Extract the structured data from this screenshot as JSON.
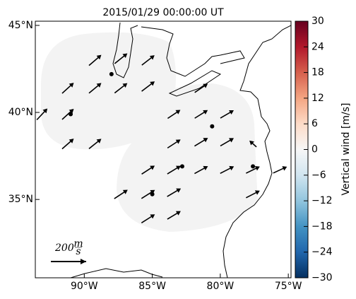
{
  "chart_data": {
    "type": "quiver",
    "title": "2015/01/29 00:00:00 UT",
    "xlim": [
      -93.6,
      -74.8
    ],
    "ylim": [
      30.5,
      45.24
    ],
    "xticks": [
      {
        "value": -90,
        "label": "90°W"
      },
      {
        "value": -85,
        "label": "85°W"
      },
      {
        "value": -80,
        "label": "80°W"
      },
      {
        "value": -75,
        "label": "75°W"
      }
    ],
    "yticks": [
      {
        "value": 35,
        "label": "35°N"
      },
      {
        "value": 40,
        "label": "40°N"
      },
      {
        "value": 45,
        "label": "45°N"
      }
    ],
    "vectors": [
      {
        "lon": -89.2,
        "lat": 43.0,
        "u": 70,
        "v": 60
      },
      {
        "lon": -87.3,
        "lat": 43.1,
        "u": 72,
        "v": 58
      },
      {
        "lon": -85.3,
        "lat": 43.0,
        "u": 72,
        "v": 56
      },
      {
        "lon": -91.2,
        "lat": 41.4,
        "u": 66,
        "v": 60
      },
      {
        "lon": -89.2,
        "lat": 41.4,
        "u": 70,
        "v": 58
      },
      {
        "lon": -87.3,
        "lat": 41.4,
        "u": 72,
        "v": 56
      },
      {
        "lon": -85.3,
        "lat": 41.5,
        "u": 74,
        "v": 56
      },
      {
        "lon": -81.4,
        "lat": 41.4,
        "u": 74,
        "v": 50
      },
      {
        "lon": -93.1,
        "lat": 39.9,
        "u": 60,
        "v": 64
      },
      {
        "lon": -91.2,
        "lat": 39.9,
        "u": 66,
        "v": 60
      },
      {
        "lon": -83.4,
        "lat": 39.9,
        "u": 72,
        "v": 48
      },
      {
        "lon": -81.4,
        "lat": 39.9,
        "u": 74,
        "v": 46
      },
      {
        "lon": -79.5,
        "lat": 39.9,
        "u": 76,
        "v": 44
      },
      {
        "lon": -91.2,
        "lat": 38.2,
        "u": 66,
        "v": 58
      },
      {
        "lon": -89.2,
        "lat": 38.2,
        "u": 70,
        "v": 56
      },
      {
        "lon": -83.4,
        "lat": 38.2,
        "u": 74,
        "v": 48
      },
      {
        "lon": -81.4,
        "lat": 38.3,
        "u": 76,
        "v": 46
      },
      {
        "lon": -79.5,
        "lat": 38.3,
        "u": 76,
        "v": 44
      },
      {
        "lon": -77.6,
        "lat": 38.2,
        "u": -40,
        "v": 36
      },
      {
        "lon": -85.3,
        "lat": 36.7,
        "u": 74,
        "v": 48
      },
      {
        "lon": -83.4,
        "lat": 36.7,
        "u": 76,
        "v": 46
      },
      {
        "lon": -81.4,
        "lat": 36.7,
        "u": 76,
        "v": 42
      },
      {
        "lon": -79.5,
        "lat": 36.7,
        "u": 78,
        "v": 40
      },
      {
        "lon": -77.6,
        "lat": 36.7,
        "u": 78,
        "v": 38
      },
      {
        "lon": -75.6,
        "lat": 36.7,
        "u": 78,
        "v": 36
      },
      {
        "lon": -87.3,
        "lat": 35.3,
        "u": 76,
        "v": 50
      },
      {
        "lon": -85.3,
        "lat": 35.3,
        "u": 76,
        "v": 48
      },
      {
        "lon": -83.4,
        "lat": 35.4,
        "u": 78,
        "v": 46
      },
      {
        "lon": -77.6,
        "lat": 35.3,
        "u": 78,
        "v": 40
      },
      {
        "lon": -85.3,
        "lat": 33.9,
        "u": 76,
        "v": 48
      },
      {
        "lon": -83.4,
        "lat": 34.1,
        "u": 76,
        "v": 46
      }
    ],
    "stations": [
      {
        "lon": -88.0,
        "lat": 42.2
      },
      {
        "lon": -91.0,
        "lat": 39.9
      },
      {
        "lon": -80.6,
        "lat": 39.2
      },
      {
        "lon": -82.8,
        "lat": 36.9
      },
      {
        "lon": -85.0,
        "lat": 35.3
      },
      {
        "lon": -77.6,
        "lat": 36.9
      }
    ],
    "scale": {
      "value": 200,
      "unit_num": "m",
      "unit_den": "s"
    },
    "colorbar": {
      "label": "Vertical wind [m/s]",
      "lim": [
        -30,
        30
      ],
      "ticks": [
        {
          "value": -30,
          "label": "−30"
        },
        {
          "value": -24,
          "label": "−24"
        },
        {
          "value": -18,
          "label": "−18"
        },
        {
          "value": -12,
          "label": "−12"
        },
        {
          "value": -6,
          "label": "−6"
        },
        0,
        6,
        12,
        18,
        24,
        30
      ]
    }
  }
}
